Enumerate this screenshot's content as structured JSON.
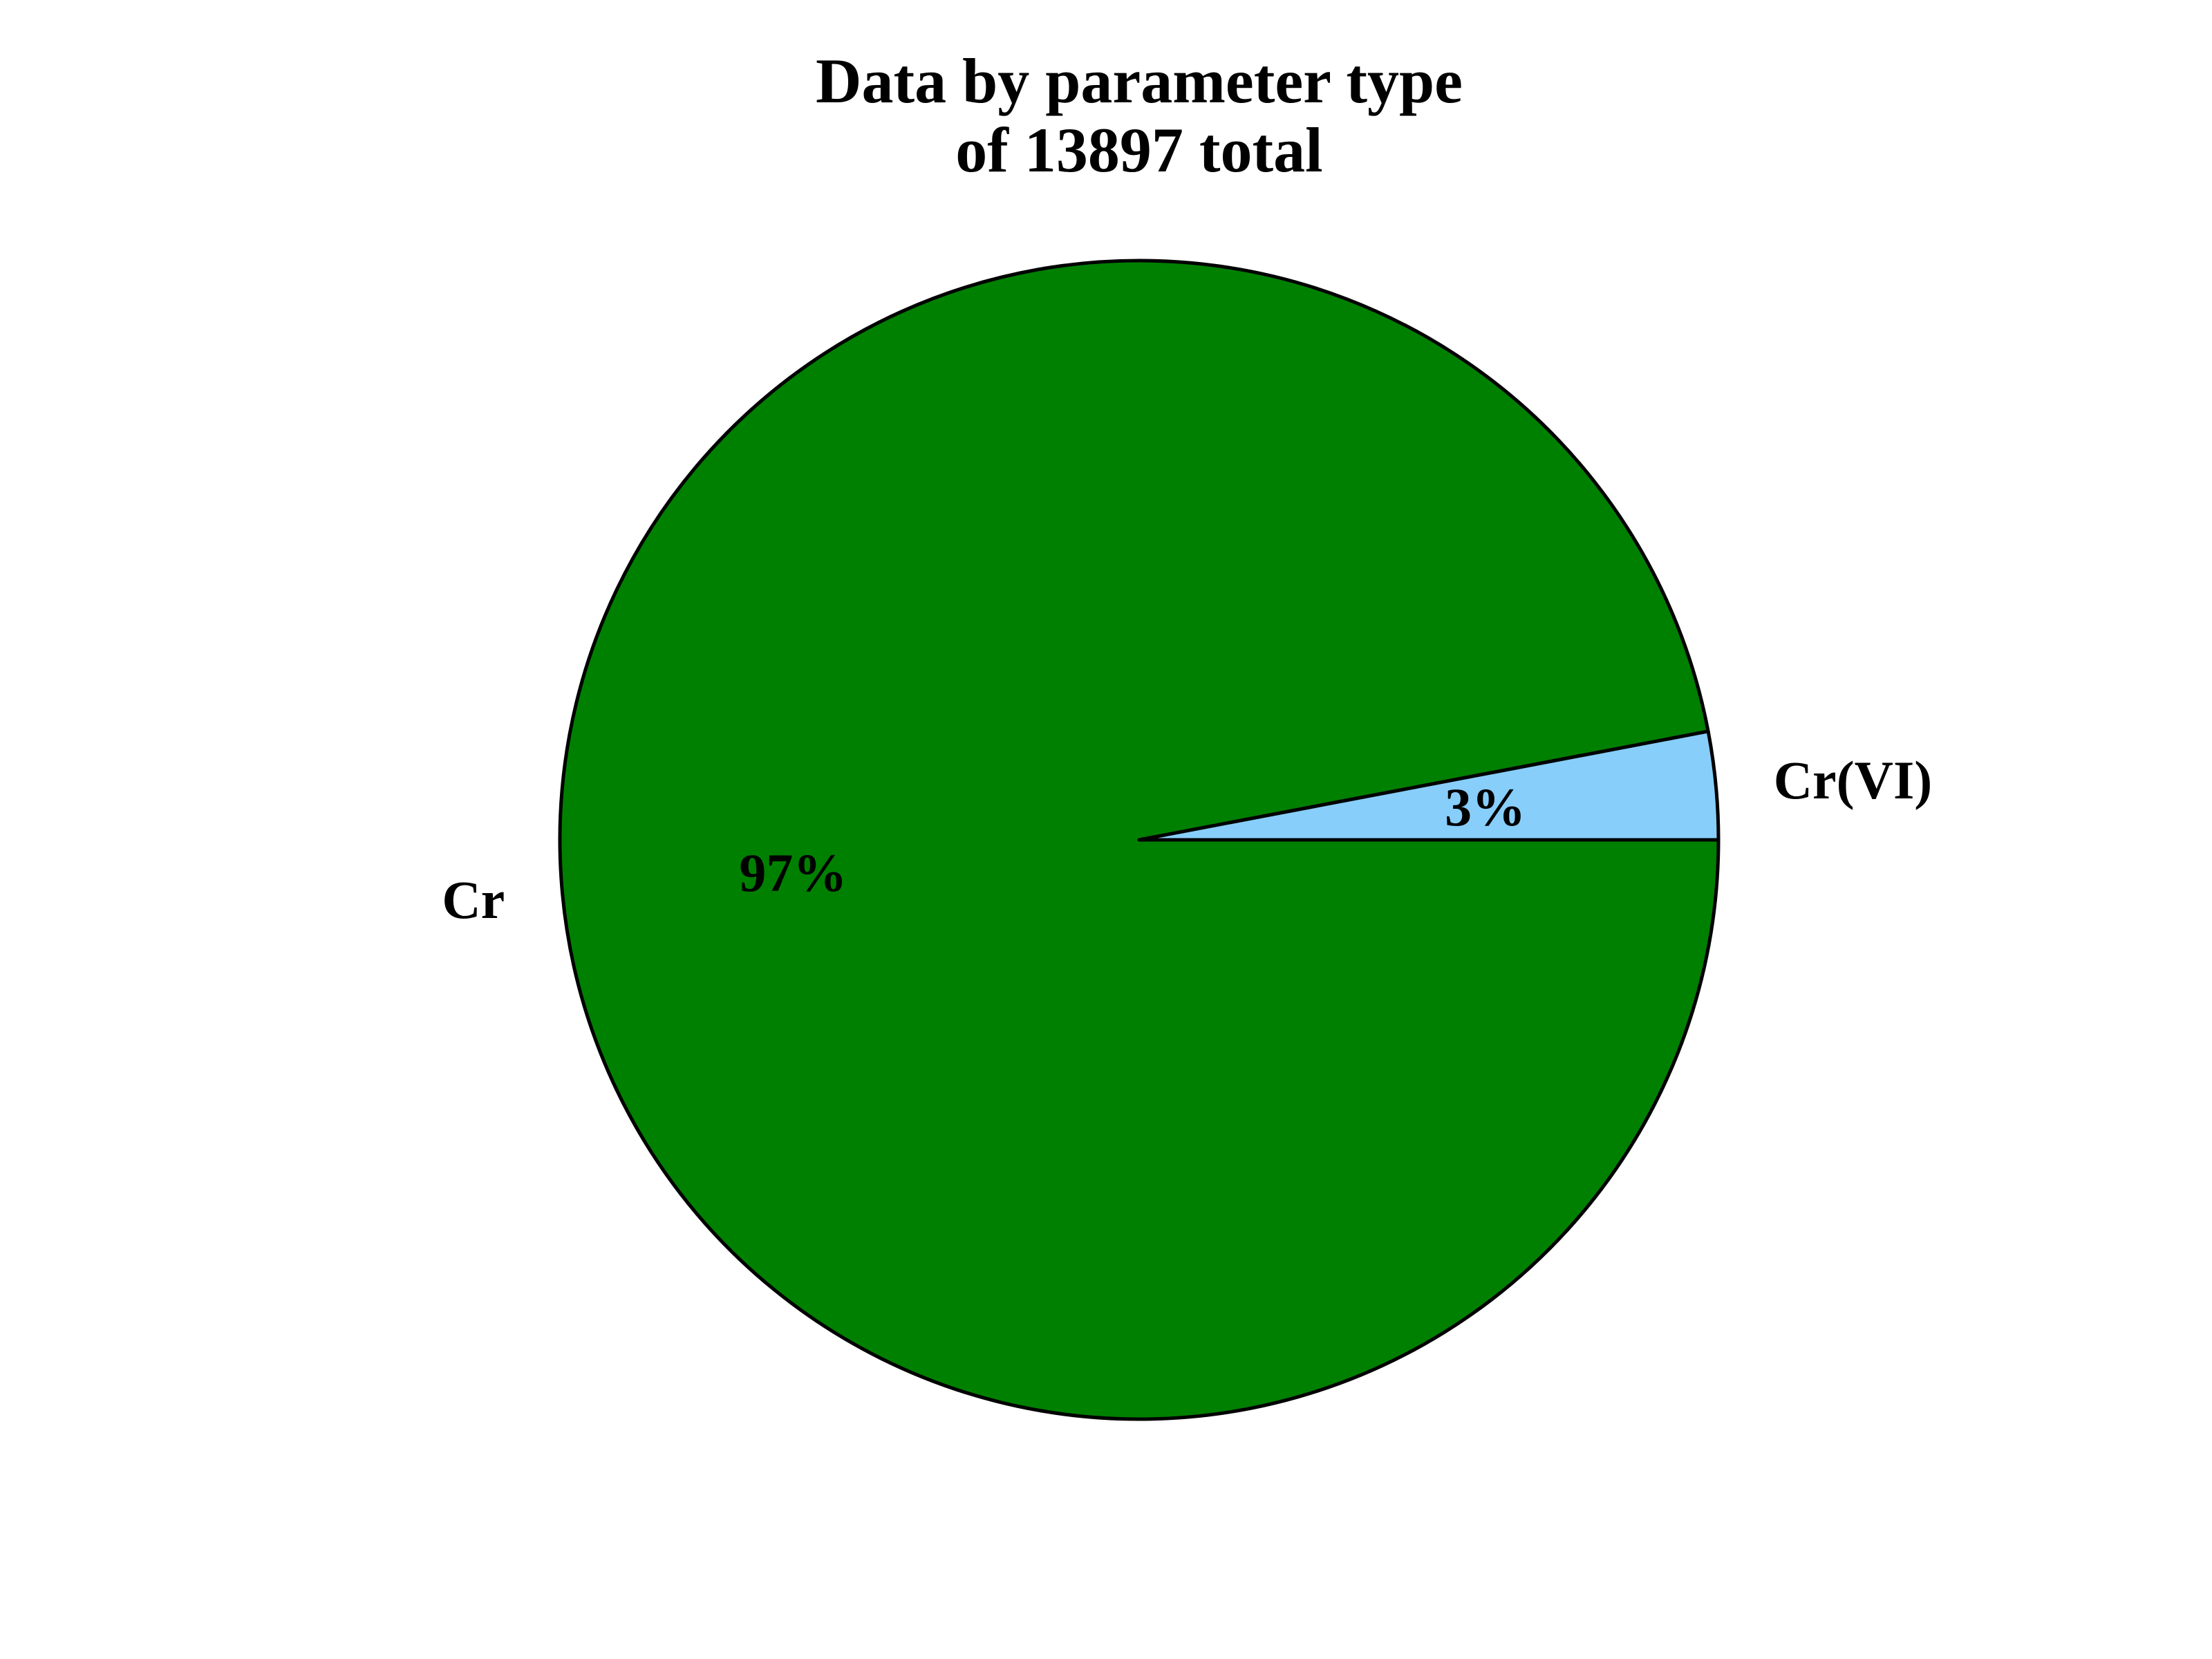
{
  "chart_data": {
    "type": "pie",
    "title_lines": [
      "Data by parameter type",
      "of 13897 total"
    ],
    "slices": [
      {
        "label": "Cr",
        "value": 97,
        "display": "97%",
        "color": "#008000"
      },
      {
        "label": "Cr(VI)",
        "value": 3,
        "display": "3%",
        "color": "#87CEFA"
      }
    ],
    "start_angle_deg": 0,
    "direction": "clockwise",
    "edge_color": "#000000"
  }
}
